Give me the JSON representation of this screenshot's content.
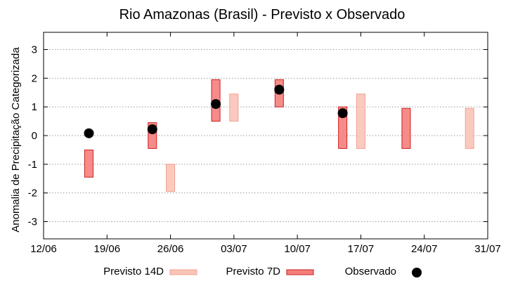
{
  "chart_data": {
    "type": "range-bar",
    "title": "Rio Amazonas (Brasil) - Previsto x Observado",
    "xlabel": "",
    "ylabel": "Anomalia de Precipitação Categorizada",
    "x_ticks": [
      "12/06",
      "19/06",
      "26/06",
      "03/07",
      "10/07",
      "17/07",
      "24/07",
      "31/07"
    ],
    "x_tick_days": [
      0,
      7,
      14,
      21,
      28,
      35,
      42,
      49
    ],
    "xlim": [
      0,
      49
    ],
    "ylim": [
      -3.6,
      3.6
    ],
    "y_ticks": [
      -3,
      -2,
      -1,
      0,
      1,
      2,
      3
    ],
    "y_tick_labels": [
      "-3",
      "-2",
      "-1",
      "0",
      "1",
      "2",
      "3"
    ],
    "grid": true,
    "legend_position": "bottom",
    "colors": {
      "previsto_14d_fill": "#f9c4b8",
      "previsto_14d_stroke": "#f2a090",
      "previsto_7d_fill": "#f57f7c",
      "previsto_7d_stroke": "#cc1f1f",
      "observado": "#000000"
    },
    "series": [
      {
        "name": "Previsto 14D",
        "kind": "range",
        "data": [
          {
            "day": 14,
            "low": -1.95,
            "high": -1.0
          },
          {
            "day": 21,
            "low": 0.5,
            "high": 1.45
          },
          {
            "day": 35,
            "low": -0.45,
            "high": 1.45
          },
          {
            "day": 47,
            "low": -0.45,
            "high": 0.95
          }
        ]
      },
      {
        "name": "Previsto 7D",
        "kind": "range",
        "data": [
          {
            "day": 5,
            "low": -1.45,
            "high": -0.5
          },
          {
            "day": 12,
            "low": -0.45,
            "high": 0.45
          },
          {
            "day": 19,
            "low": 0.5,
            "high": 1.95
          },
          {
            "day": 26,
            "low": 1.0,
            "high": 1.95
          },
          {
            "day": 33,
            "low": -0.45,
            "high": 1.0
          },
          {
            "day": 40,
            "low": -0.45,
            "high": 0.95
          }
        ]
      },
      {
        "name": "Observado",
        "kind": "point",
        "data": [
          {
            "day": 5,
            "value": 0.08
          },
          {
            "day": 12,
            "value": 0.22
          },
          {
            "day": 19,
            "value": 1.1
          },
          {
            "day": 26,
            "value": 1.6
          },
          {
            "day": 33,
            "value": 0.78
          }
        ]
      }
    ],
    "legend": [
      "Previsto 14D",
      "Previsto 7D",
      "Observado"
    ]
  }
}
